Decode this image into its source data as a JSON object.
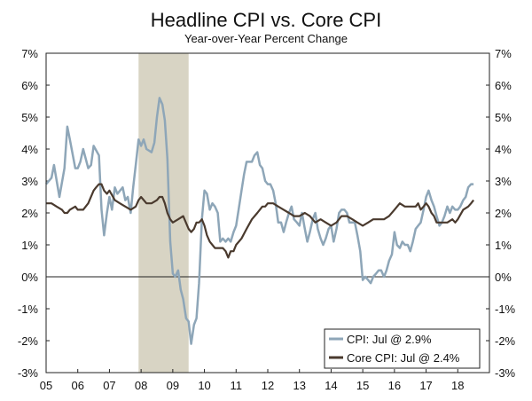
{
  "chart_data": {
    "type": "line",
    "title": "Headline CPI vs. Core CPI",
    "subtitle": "Year-over-Year Percent Change",
    "x_tick_labels": [
      "05",
      "06",
      "07",
      "08",
      "09",
      "10",
      "11",
      "12",
      "13",
      "14",
      "15",
      "16",
      "17",
      "18"
    ],
    "x_range": [
      2005.0,
      2019.0
    ],
    "ylim": [
      -3,
      7
    ],
    "y_tick_labels": [
      "7%",
      "6%",
      "5%",
      "4%",
      "3%",
      "2%",
      "1%",
      "0%",
      "-1%",
      "-2%",
      "-3%"
    ],
    "y_tick_values": [
      7,
      6,
      5,
      4,
      3,
      2,
      1,
      0,
      -1,
      -2,
      -3
    ],
    "recession": {
      "start": 2007.92,
      "end": 2009.5,
      "color": "#d8d4c4"
    },
    "legend_position": "bottom-right",
    "series": [
      {
        "name": "CPI: Jul @ 2.9%",
        "color": "#8ea6b8",
        "points": [
          [
            2005.0,
            2.9
          ],
          [
            2005.17,
            3.1
          ],
          [
            2005.25,
            3.5
          ],
          [
            2005.42,
            2.5
          ],
          [
            2005.58,
            3.4
          ],
          [
            2005.67,
            4.7
          ],
          [
            2005.75,
            4.3
          ],
          [
            2005.92,
            3.4
          ],
          [
            2006.0,
            3.4
          ],
          [
            2006.08,
            3.6
          ],
          [
            2006.17,
            4.0
          ],
          [
            2006.33,
            3.4
          ],
          [
            2006.42,
            3.5
          ],
          [
            2006.5,
            4.1
          ],
          [
            2006.67,
            3.8
          ],
          [
            2006.75,
            2.1
          ],
          [
            2006.83,
            1.3
          ],
          [
            2006.92,
            2.0
          ],
          [
            2007.0,
            2.5
          ],
          [
            2007.08,
            2.1
          ],
          [
            2007.17,
            2.8
          ],
          [
            2007.25,
            2.6
          ],
          [
            2007.42,
            2.8
          ],
          [
            2007.5,
            2.4
          ],
          [
            2007.58,
            2.5
          ],
          [
            2007.67,
            2.0
          ],
          [
            2007.75,
            2.8
          ],
          [
            2007.83,
            3.5
          ],
          [
            2007.92,
            4.3
          ],
          [
            2008.0,
            4.1
          ],
          [
            2008.08,
            4.3
          ],
          [
            2008.17,
            4.0
          ],
          [
            2008.33,
            3.9
          ],
          [
            2008.42,
            4.2
          ],
          [
            2008.5,
            5.0
          ],
          [
            2008.58,
            5.6
          ],
          [
            2008.67,
            5.4
          ],
          [
            2008.75,
            4.9
          ],
          [
            2008.83,
            3.7
          ],
          [
            2008.92,
            1.1
          ],
          [
            2009.0,
            0.1
          ],
          [
            2009.08,
            0.0
          ],
          [
            2009.17,
            0.2
          ],
          [
            2009.25,
            -0.4
          ],
          [
            2009.33,
            -0.7
          ],
          [
            2009.42,
            -1.3
          ],
          [
            2009.5,
            -1.4
          ],
          [
            2009.58,
            -2.1
          ],
          [
            2009.67,
            -1.5
          ],
          [
            2009.75,
            -1.3
          ],
          [
            2009.83,
            -0.2
          ],
          [
            2009.92,
            1.8
          ],
          [
            2010.0,
            2.7
          ],
          [
            2010.08,
            2.6
          ],
          [
            2010.17,
            2.1
          ],
          [
            2010.25,
            2.3
          ],
          [
            2010.33,
            2.2
          ],
          [
            2010.42,
            2.0
          ],
          [
            2010.5,
            1.1
          ],
          [
            2010.58,
            1.2
          ],
          [
            2010.67,
            1.1
          ],
          [
            2010.75,
            1.2
          ],
          [
            2010.83,
            1.1
          ],
          [
            2010.92,
            1.4
          ],
          [
            2011.0,
            1.6
          ],
          [
            2011.08,
            2.1
          ],
          [
            2011.17,
            2.7
          ],
          [
            2011.25,
            3.2
          ],
          [
            2011.33,
            3.6
          ],
          [
            2011.5,
            3.6
          ],
          [
            2011.58,
            3.8
          ],
          [
            2011.67,
            3.9
          ],
          [
            2011.75,
            3.5
          ],
          [
            2011.83,
            3.4
          ],
          [
            2011.92,
            3.0
          ],
          [
            2012.0,
            2.9
          ],
          [
            2012.08,
            2.9
          ],
          [
            2012.17,
            2.7
          ],
          [
            2012.25,
            2.3
          ],
          [
            2012.33,
            1.7
          ],
          [
            2012.42,
            1.7
          ],
          [
            2012.5,
            1.4
          ],
          [
            2012.58,
            1.7
          ],
          [
            2012.67,
            2.0
          ],
          [
            2012.75,
            2.2
          ],
          [
            2012.83,
            1.8
          ],
          [
            2012.92,
            1.7
          ],
          [
            2013.0,
            1.6
          ],
          [
            2013.08,
            2.0
          ],
          [
            2013.17,
            1.5
          ],
          [
            2013.25,
            1.1
          ],
          [
            2013.33,
            1.4
          ],
          [
            2013.42,
            1.8
          ],
          [
            2013.5,
            2.0
          ],
          [
            2013.58,
            1.5
          ],
          [
            2013.67,
            1.2
          ],
          [
            2013.75,
            1.0
          ],
          [
            2013.83,
            1.2
          ],
          [
            2013.92,
            1.5
          ],
          [
            2014.0,
            1.6
          ],
          [
            2014.08,
            1.1
          ],
          [
            2014.17,
            1.5
          ],
          [
            2014.25,
            2.0
          ],
          [
            2014.33,
            2.1
          ],
          [
            2014.42,
            2.1
          ],
          [
            2014.5,
            2.0
          ],
          [
            2014.58,
            1.7
          ],
          [
            2014.67,
            1.7
          ],
          [
            2014.75,
            1.7
          ],
          [
            2014.83,
            1.3
          ],
          [
            2014.92,
            0.8
          ],
          [
            2015.0,
            -0.1
          ],
          [
            2015.08,
            0.0
          ],
          [
            2015.17,
            -0.1
          ],
          [
            2015.25,
            -0.2
          ],
          [
            2015.33,
            0.0
          ],
          [
            2015.42,
            0.1
          ],
          [
            2015.5,
            0.2
          ],
          [
            2015.58,
            0.2
          ],
          [
            2015.67,
            0.0
          ],
          [
            2015.75,
            0.2
          ],
          [
            2015.83,
            0.5
          ],
          [
            2015.92,
            0.7
          ],
          [
            2016.0,
            1.4
          ],
          [
            2016.08,
            1.0
          ],
          [
            2016.17,
            0.9
          ],
          [
            2016.25,
            1.1
          ],
          [
            2016.33,
            1.0
          ],
          [
            2016.42,
            1.0
          ],
          [
            2016.5,
            0.8
          ],
          [
            2016.58,
            1.1
          ],
          [
            2016.67,
            1.5
          ],
          [
            2016.75,
            1.6
          ],
          [
            2016.83,
            1.7
          ],
          [
            2016.92,
            2.1
          ],
          [
            2017.0,
            2.5
          ],
          [
            2017.08,
            2.7
          ],
          [
            2017.17,
            2.4
          ],
          [
            2017.25,
            2.2
          ],
          [
            2017.33,
            1.9
          ],
          [
            2017.42,
            1.6
          ],
          [
            2017.5,
            1.7
          ],
          [
            2017.58,
            1.9
          ],
          [
            2017.67,
            2.2
          ],
          [
            2017.75,
            2.0
          ],
          [
            2017.83,
            2.2
          ],
          [
            2017.92,
            2.1
          ],
          [
            2018.0,
            2.1
          ],
          [
            2018.08,
            2.2
          ],
          [
            2018.17,
            2.4
          ],
          [
            2018.25,
            2.5
          ],
          [
            2018.33,
            2.8
          ],
          [
            2018.42,
            2.9
          ],
          [
            2018.5,
            2.9
          ]
        ]
      },
      {
        "name": "Core CPI: Jul @ 2.4%",
        "color": "#4a3a2e",
        "points": [
          [
            2005.0,
            2.3
          ],
          [
            2005.17,
            2.3
          ],
          [
            2005.33,
            2.2
          ],
          [
            2005.5,
            2.1
          ],
          [
            2005.58,
            2.0
          ],
          [
            2005.67,
            2.0
          ],
          [
            2005.75,
            2.1
          ],
          [
            2005.92,
            2.2
          ],
          [
            2006.0,
            2.1
          ],
          [
            2006.17,
            2.1
          ],
          [
            2006.33,
            2.3
          ],
          [
            2006.5,
            2.7
          ],
          [
            2006.58,
            2.8
          ],
          [
            2006.67,
            2.9
          ],
          [
            2006.75,
            2.9
          ],
          [
            2006.83,
            2.7
          ],
          [
            2006.92,
            2.6
          ],
          [
            2007.0,
            2.7
          ],
          [
            2007.17,
            2.4
          ],
          [
            2007.33,
            2.3
          ],
          [
            2007.5,
            2.2
          ],
          [
            2007.67,
            2.1
          ],
          [
            2007.83,
            2.2
          ],
          [
            2007.92,
            2.4
          ],
          [
            2008.0,
            2.5
          ],
          [
            2008.17,
            2.3
          ],
          [
            2008.33,
            2.3
          ],
          [
            2008.5,
            2.4
          ],
          [
            2008.58,
            2.5
          ],
          [
            2008.67,
            2.5
          ],
          [
            2008.75,
            2.3
          ],
          [
            2008.83,
            2.0
          ],
          [
            2008.92,
            1.8
          ],
          [
            2009.0,
            1.7
          ],
          [
            2009.17,
            1.8
          ],
          [
            2009.33,
            1.9
          ],
          [
            2009.5,
            1.5
          ],
          [
            2009.58,
            1.4
          ],
          [
            2009.67,
            1.5
          ],
          [
            2009.75,
            1.7
          ],
          [
            2009.83,
            1.7
          ],
          [
            2009.92,
            1.8
          ],
          [
            2010.0,
            1.6
          ],
          [
            2010.08,
            1.3
          ],
          [
            2010.17,
            1.1
          ],
          [
            2010.33,
            0.9
          ],
          [
            2010.5,
            0.9
          ],
          [
            2010.58,
            0.9
          ],
          [
            2010.67,
            0.8
          ],
          [
            2010.75,
            0.6
          ],
          [
            2010.83,
            0.8
          ],
          [
            2010.92,
            0.8
          ],
          [
            2011.0,
            1.0
          ],
          [
            2011.17,
            1.2
          ],
          [
            2011.33,
            1.5
          ],
          [
            2011.5,
            1.8
          ],
          [
            2011.67,
            2.0
          ],
          [
            2011.83,
            2.2
          ],
          [
            2011.92,
            2.2
          ],
          [
            2012.0,
            2.3
          ],
          [
            2012.17,
            2.3
          ],
          [
            2012.33,
            2.2
          ],
          [
            2012.5,
            2.1
          ],
          [
            2012.67,
            2.0
          ],
          [
            2012.83,
            1.9
          ],
          [
            2013.0,
            1.9
          ],
          [
            2013.17,
            2.0
          ],
          [
            2013.33,
            1.9
          ],
          [
            2013.5,
            1.7
          ],
          [
            2013.67,
            1.8
          ],
          [
            2013.83,
            1.7
          ],
          [
            2014.0,
            1.6
          ],
          [
            2014.17,
            1.7
          ],
          [
            2014.33,
            1.9
          ],
          [
            2014.42,
            1.9
          ],
          [
            2014.5,
            1.9
          ],
          [
            2014.67,
            1.8
          ],
          [
            2014.83,
            1.7
          ],
          [
            2015.0,
            1.6
          ],
          [
            2015.17,
            1.7
          ],
          [
            2015.33,
            1.8
          ],
          [
            2015.5,
            1.8
          ],
          [
            2015.67,
            1.8
          ],
          [
            2015.83,
            1.9
          ],
          [
            2016.0,
            2.1
          ],
          [
            2016.17,
            2.3
          ],
          [
            2016.33,
            2.2
          ],
          [
            2016.5,
            2.2
          ],
          [
            2016.67,
            2.2
          ],
          [
            2016.75,
            2.3
          ],
          [
            2016.83,
            2.1
          ],
          [
            2016.92,
            2.2
          ],
          [
            2017.0,
            2.3
          ],
          [
            2017.08,
            2.2
          ],
          [
            2017.17,
            2.0
          ],
          [
            2017.25,
            1.9
          ],
          [
            2017.33,
            1.7
          ],
          [
            2017.5,
            1.7
          ],
          [
            2017.67,
            1.7
          ],
          [
            2017.83,
            1.8
          ],
          [
            2017.92,
            1.7
          ],
          [
            2018.0,
            1.8
          ],
          [
            2018.17,
            2.1
          ],
          [
            2018.33,
            2.2
          ],
          [
            2018.42,
            2.3
          ],
          [
            2018.5,
            2.4
          ]
        ]
      }
    ]
  }
}
